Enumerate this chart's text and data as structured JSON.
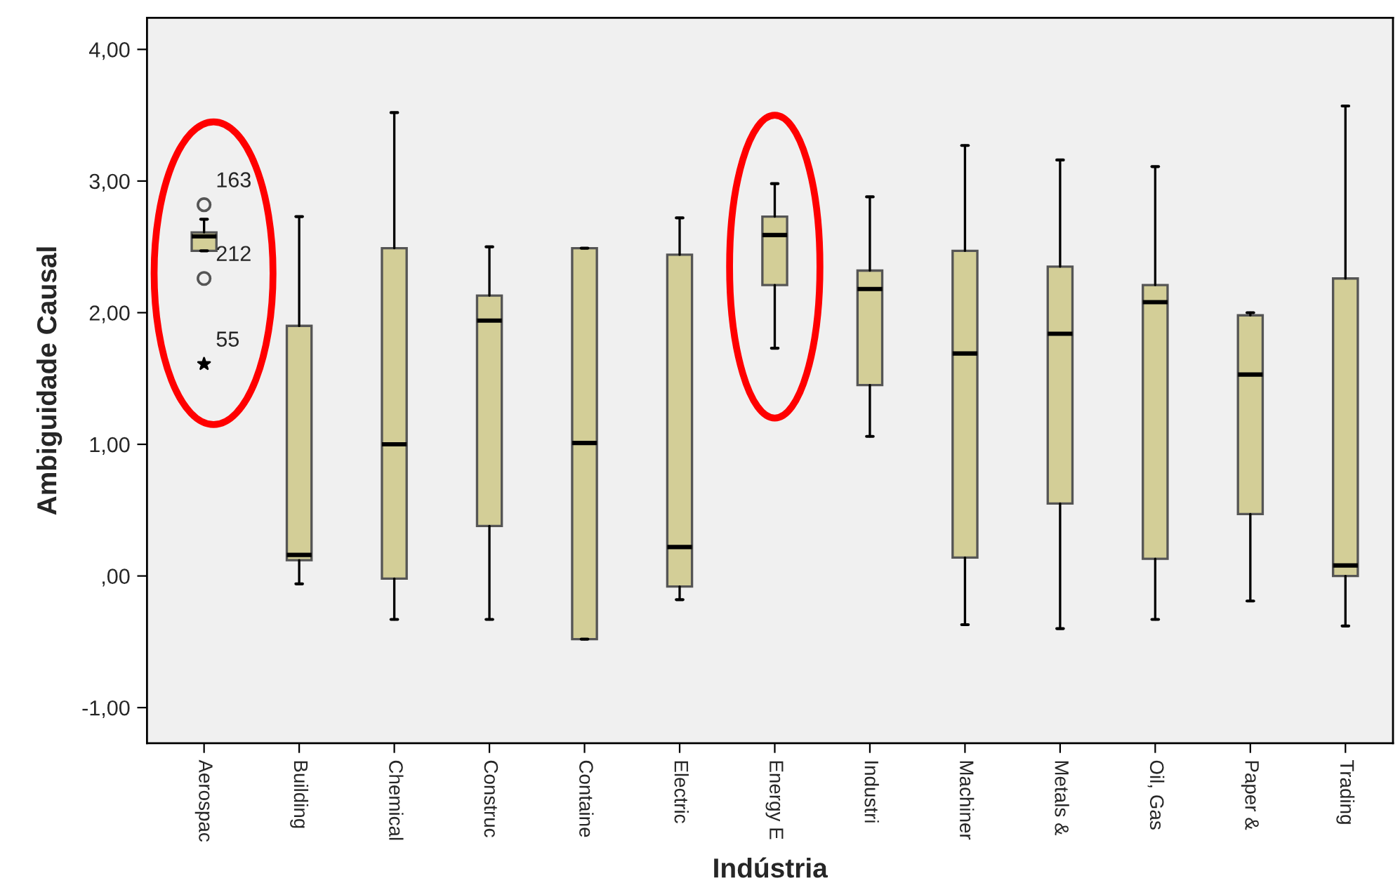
{
  "chart_data": {
    "type": "box",
    "xlabel": "Indústria",
    "ylabel": "Ambiguidade Causal",
    "categories": [
      "Aerospac",
      "Building",
      "Chemical",
      "Construc",
      "Containe",
      "Electric",
      "Energy E",
      "Industri",
      "Machiner",
      "Metals &",
      "Oil, Gas",
      "Paper &",
      "Trading"
    ],
    "color": "#d3ce97",
    "boxes": [
      {
        "low": 2.47,
        "q1": 2.47,
        "median": 2.58,
        "q3": 2.61,
        "high": 2.71,
        "outliers": [
          2.82,
          2.26,
          1.61
        ]
      },
      {
        "low": -0.06,
        "q1": 0.12,
        "median": 0.16,
        "q3": 1.9,
        "high": 2.73
      },
      {
        "low": -0.33,
        "q1": -0.02,
        "median": 1.0,
        "q3": 2.49,
        "high": 3.52
      },
      {
        "low": -0.33,
        "q1": 0.38,
        "median": 1.94,
        "q3": 2.13,
        "high": 2.5
      },
      {
        "low": -0.48,
        "q1": -0.48,
        "median": 1.01,
        "q3": 2.49,
        "high": 2.49
      },
      {
        "low": -0.18,
        "q1": -0.08,
        "median": 0.22,
        "q3": 2.44,
        "high": 2.72
      },
      {
        "low": 1.73,
        "q1": 2.21,
        "median": 2.59,
        "q3": 2.73,
        "high": 2.98
      },
      {
        "low": 1.06,
        "q1": 1.45,
        "median": 2.18,
        "q3": 2.32,
        "high": 2.88
      },
      {
        "low": -0.37,
        "q1": 0.14,
        "median": 1.69,
        "q3": 2.47,
        "high": 3.27
      },
      {
        "low": -0.4,
        "q1": 0.55,
        "median": 1.84,
        "q3": 2.35,
        "high": 3.16
      },
      {
        "low": -0.33,
        "q1": 0.13,
        "median": 2.08,
        "q3": 2.21,
        "high": 3.11
      },
      {
        "low": -0.19,
        "q1": 0.47,
        "median": 1.53,
        "q3": 1.98,
        "high": 2.0
      },
      {
        "low": -0.38,
        "q1": 0.0,
        "median": 0.08,
        "q3": 2.26,
        "high": 3.57
      }
    ],
    "annotations": [
      "163",
      "212",
      "55"
    ],
    "ylim": [
      -1.27,
      4.24
    ],
    "yticks": [
      {
        "value": 4,
        "label": "4,00"
      },
      {
        "value": 3,
        "label": "3,00"
      },
      {
        "value": 2,
        "label": "2,00"
      },
      {
        "value": 1,
        "label": "1,00"
      },
      {
        "value": 0,
        "label": ",00"
      },
      {
        "value": -1,
        "label": "-1,00"
      }
    ],
    "grid": false
  }
}
